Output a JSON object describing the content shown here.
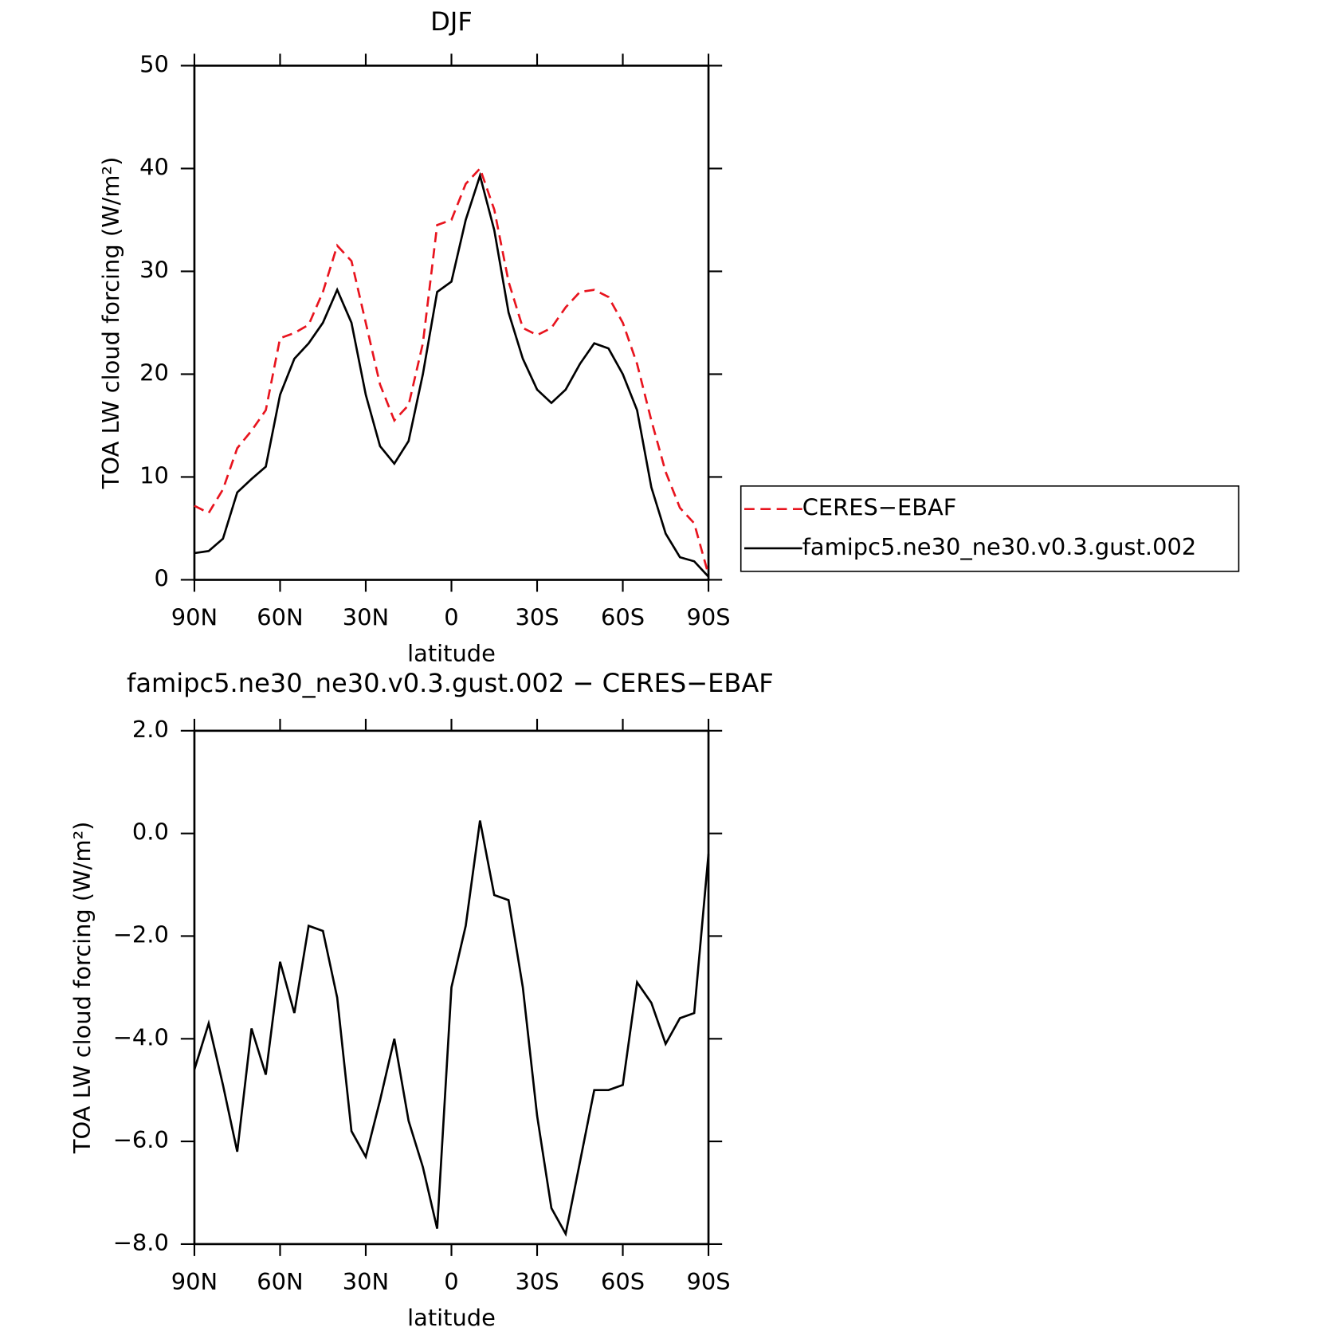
{
  "chart_data": [
    {
      "type": "line",
      "title": "DJF",
      "xlabel": "latitude",
      "ylabel": "TOA LW cloud forcing (W/m²)",
      "x": [
        90,
        85,
        80,
        75,
        70,
        65,
        60,
        55,
        50,
        45,
        40,
        35,
        30,
        25,
        20,
        15,
        10,
        5,
        0,
        -5,
        -10,
        -15,
        -20,
        -25,
        -30,
        -35,
        -40,
        -45,
        -50,
        -55,
        -60,
        -65,
        -70,
        -75,
        -80,
        -85,
        -90
      ],
      "xlim": [
        90,
        -90
      ],
      "xticks": [
        {
          "value": 90,
          "label": "90N"
        },
        {
          "value": 60,
          "label": "60N"
        },
        {
          "value": 30,
          "label": "30N"
        },
        0,
        {
          "value": -30,
          "label": "30S"
        },
        {
          "value": -60,
          "label": "60S"
        },
        {
          "value": -90,
          "label": "90S"
        }
      ],
      "ylim": [
        0,
        50
      ],
      "yticks": [
        0,
        10,
        20,
        30,
        40,
        50
      ],
      "legend": "right",
      "series": [
        {
          "name": "CERES−EBAF",
          "color": "#e8141e",
          "dashed": true,
          "values": [
            7.2,
            6.5,
            8.8,
            12.8,
            14.5,
            16.5,
            23.5,
            24,
            24.8,
            28,
            32.5,
            31,
            25,
            19,
            15.5,
            17,
            23,
            34.5,
            35,
            38.5,
            40,
            36,
            29,
            24.5,
            23.8,
            24.5,
            26.5,
            28,
            28.2,
            27.5,
            25,
            21,
            15.5,
            10.5,
            7,
            5.5,
            0.5
          ]
        },
        {
          "name": "famipc5.ne30_ne30.v0.3.gust.002",
          "color": "#000000",
          "dashed": false,
          "values": [
            2.6,
            2.8,
            4,
            8.5,
            9.8,
            11,
            18,
            21.5,
            23,
            25,
            28.2,
            25,
            18,
            13,
            11.3,
            13.5,
            20,
            28,
            29,
            35,
            39.3,
            34,
            26,
            21.5,
            18.5,
            17.2,
            18.5,
            21,
            23,
            22.5,
            20,
            16.5,
            9,
            4.5,
            2.2,
            1.8,
            0.3
          ]
        }
      ]
    },
    {
      "type": "line",
      "title": "famipc5.ne30_ne30.v0.3.gust.002 − CERES−EBAF",
      "xlabel": "latitude",
      "ylabel": "TOA LW cloud forcing (W/m²)",
      "x": [
        90,
        85,
        80,
        75,
        70,
        65,
        60,
        55,
        50,
        45,
        40,
        35,
        30,
        25,
        20,
        15,
        10,
        5,
        0,
        -5,
        -10,
        -15,
        -20,
        -25,
        -30,
        -35,
        -40,
        -45,
        -50,
        -55,
        -60,
        -65,
        -70,
        -75,
        -80,
        -85,
        -90
      ],
      "xlim": [
        90,
        -90
      ],
      "xticks": [
        {
          "value": 90,
          "label": "90N"
        },
        {
          "value": 60,
          "label": "60N"
        },
        {
          "value": 30,
          "label": "30N"
        },
        0,
        {
          "value": -30,
          "label": "30S"
        },
        {
          "value": -60,
          "label": "60S"
        },
        {
          "value": -90,
          "label": "90S"
        }
      ],
      "ylim": [
        -8,
        2
      ],
      "yticks": [
        {
          "value": -8,
          "label": "−8.0"
        },
        {
          "value": -6,
          "label": "−6.0"
        },
        {
          "value": -4,
          "label": "−4.0"
        },
        {
          "value": -2,
          "label": "−2.0"
        },
        {
          "value": 0,
          "label": "0.0"
        },
        {
          "value": 2,
          "label": "2.0"
        }
      ],
      "series": [
        {
          "color": "#000000",
          "dashed": false,
          "values": [
            -4.6,
            -3.7,
            -4.9,
            -6.2,
            -3.8,
            -4.7,
            -2.5,
            -3.5,
            -1.8,
            -1.9,
            -3.2,
            -5.8,
            -6.3,
            -5.2,
            -4.0,
            -5.6,
            -6.5,
            -7.7,
            -3.0,
            -1.8,
            0.25,
            -1.2,
            -1.3,
            -3.0,
            -5.5,
            -7.3,
            -7.8,
            -6.4,
            -5.0,
            -5.0,
            -4.9,
            -2.9,
            -3.3,
            -4.1,
            -3.6,
            -3.5,
            -0.4
          ]
        }
      ]
    }
  ]
}
